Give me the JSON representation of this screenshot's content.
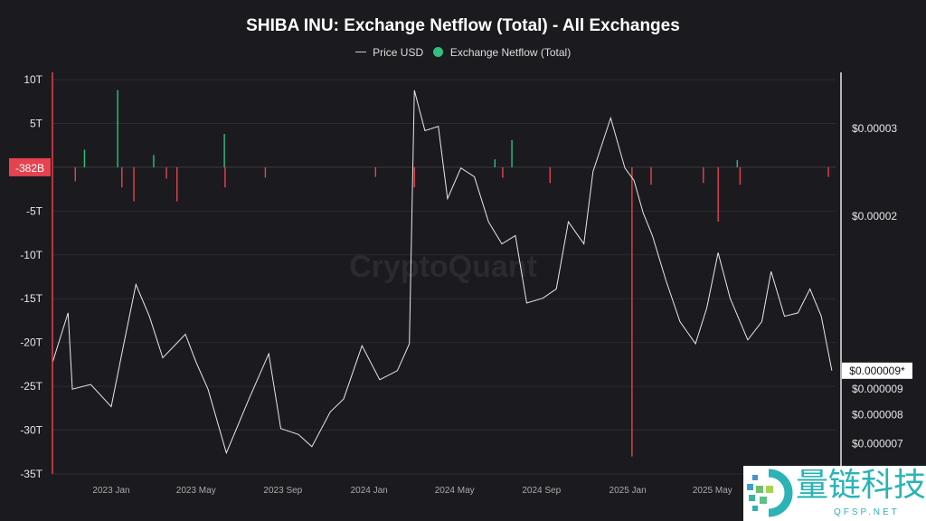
{
  "chart_data": {
    "type": "bar+line",
    "title": "SHIBA INU: Exchange Netflow (Total) - All Exchanges",
    "legend": [
      "Price USD",
      "Exchange Netflow (Total)"
    ],
    "legend_placement": "top-center",
    "colors": {
      "price": "#e8e8e8",
      "inflow": "#2fbf7f",
      "outflow": "#e5434f",
      "background": "#1b1b1f",
      "current_badge": "#e5434f"
    },
    "watermark": "CryptoQuant",
    "left_axis": {
      "ticks": [
        "10T",
        "5T",
        "-5T",
        "-10T",
        "-15T",
        "-20T",
        "-25T",
        "-30T",
        "-35T"
      ],
      "values": [
        10,
        5,
        -5,
        -10,
        -15,
        -20,
        -25,
        -30,
        -35
      ],
      "range": [
        -35,
        10
      ],
      "unit": "T",
      "current_label": "-382B",
      "current_value": -0.382
    },
    "right_axis": {
      "scale": "log",
      "ticks": [
        "$0.00003",
        "$0.00002",
        "$0.000009",
        "$0.000008",
        "$0.000007"
      ],
      "values": [
        3e-05,
        2e-05,
        9e-06,
        8e-06,
        7e-06
      ],
      "current_label": "$0.000009*",
      "current_value": 9.8e-06
    },
    "x_axis": {
      "ticks": [
        "2023 Jan",
        "2023 May",
        "2023 Sep",
        "2024 Jan",
        "2024 May",
        "2024 Sep",
        "2025 Jan",
        "2025 May"
      ],
      "dates": [
        "2023-01-01",
        "2023-05-01",
        "2023-09-01",
        "2024-01-01",
        "2024-05-01",
        "2024-09-01",
        "2025-01-01",
        "2025-05-01"
      ]
    },
    "grid": true,
    "price_series": [
      [
        "2022-10-10",
        1.02e-05
      ],
      [
        "2022-11-01",
        1.28e-05
      ],
      [
        "2022-11-07",
        9e-06
      ],
      [
        "2022-12-03",
        9.2e-06
      ],
      [
        "2023-01-01",
        8.3e-06
      ],
      [
        "2023-01-16",
        1.06e-05
      ],
      [
        "2023-02-05",
        1.46e-05
      ],
      [
        "2023-02-24",
        1.26e-05
      ],
      [
        "2023-03-15",
        1.04e-05
      ],
      [
        "2023-04-16",
        1.16e-05
      ],
      [
        "2023-05-01",
        1.02e-05
      ],
      [
        "2023-05-18",
        9e-06
      ],
      [
        "2023-06-13",
        6.7e-06
      ],
      [
        "2023-07-15",
        8.6e-06
      ],
      [
        "2023-08-12",
        1.06e-05
      ],
      [
        "2023-08-29",
        7.5e-06
      ],
      [
        "2023-09-23",
        7.3e-06
      ],
      [
        "2023-10-12",
        6.9e-06
      ],
      [
        "2023-11-07",
        8.1e-06
      ],
      [
        "2023-11-26",
        8.6e-06
      ],
      [
        "2023-12-22",
        1.1e-05
      ],
      [
        "2024-01-16",
        9.4e-06
      ],
      [
        "2024-02-10",
        9.8e-06
      ],
      [
        "2024-02-27",
        1.11e-05
      ],
      [
        "2024-03-05",
        3.58e-05
      ],
      [
        "2024-03-20",
        2.97e-05
      ],
      [
        "2024-04-08",
        3.03e-05
      ],
      [
        "2024-04-21",
        2.17e-05
      ],
      [
        "2024-05-10",
        2.5e-05
      ],
      [
        "2024-05-29",
        2.4e-05
      ],
      [
        "2024-06-18",
        1.95e-05
      ],
      [
        "2024-07-07",
        1.76e-05
      ],
      [
        "2024-07-26",
        1.83e-05
      ],
      [
        "2024-08-11",
        1.34e-05
      ],
      [
        "2024-09-03",
        1.37e-05
      ],
      [
        "2024-09-22",
        1.43e-05
      ],
      [
        "2024-10-09",
        1.95e-05
      ],
      [
        "2024-10-31",
        1.76e-05
      ],
      [
        "2024-11-13",
        2.46e-05
      ],
      [
        "2024-12-08",
        3.15e-05
      ],
      [
        "2024-12-28",
        2.5e-05
      ],
      [
        "2025-01-10",
        2.36e-05
      ],
      [
        "2025-01-23",
        2.03e-05
      ],
      [
        "2025-02-05",
        1.83e-05
      ],
      [
        "2025-02-24",
        1.49e-05
      ],
      [
        "2025-03-16",
        1.23e-05
      ],
      [
        "2025-04-07",
        1.11e-05
      ],
      [
        "2025-04-23",
        1.31e-05
      ],
      [
        "2025-05-09",
        1.69e-05
      ],
      [
        "2025-05-26",
        1.37e-05
      ],
      [
        "2025-06-20",
        1.13e-05
      ],
      [
        "2025-07-10",
        1.23e-05
      ],
      [
        "2025-07-23",
        1.55e-05
      ],
      [
        "2025-08-11",
        1.26e-05
      ],
      [
        "2025-08-30",
        1.28e-05
      ],
      [
        "2025-09-16",
        1.43e-05
      ],
      [
        "2025-10-02",
        1.26e-05
      ],
      [
        "2025-10-17",
        9.8e-06
      ]
    ],
    "netflow_series": [
      [
        "2022-11-11",
        -1.6
      ],
      [
        "2022-11-24",
        2.0
      ],
      [
        "2023-01-10",
        8.8
      ],
      [
        "2023-01-16",
        -2.3
      ],
      [
        "2023-02-02",
        -3.9
      ],
      [
        "2023-03-02",
        1.4
      ],
      [
        "2023-03-20",
        -1.3
      ],
      [
        "2023-04-04",
        -3.9
      ],
      [
        "2023-06-10",
        3.8
      ],
      [
        "2023-06-11",
        -2.3
      ],
      [
        "2023-08-07",
        -1.2
      ],
      [
        "2024-01-10",
        -1.1
      ],
      [
        "2024-03-05",
        -2.3
      ],
      [
        "2024-06-27",
        0.9
      ],
      [
        "2024-07-08",
        -1.2
      ],
      [
        "2024-07-21",
        3.1
      ],
      [
        "2024-09-13",
        -1.8
      ],
      [
        "2025-01-07",
        -33.0
      ],
      [
        "2025-02-03",
        -2.0
      ],
      [
        "2025-04-18",
        -1.8
      ],
      [
        "2025-05-09",
        -6.2
      ],
      [
        "2025-06-05",
        0.8
      ],
      [
        "2025-06-09",
        -2.0
      ],
      [
        "2025-10-12",
        -1.1
      ]
    ]
  },
  "logo": {
    "name_cn": "量链科技",
    "name_en": "QFSP.NET"
  }
}
